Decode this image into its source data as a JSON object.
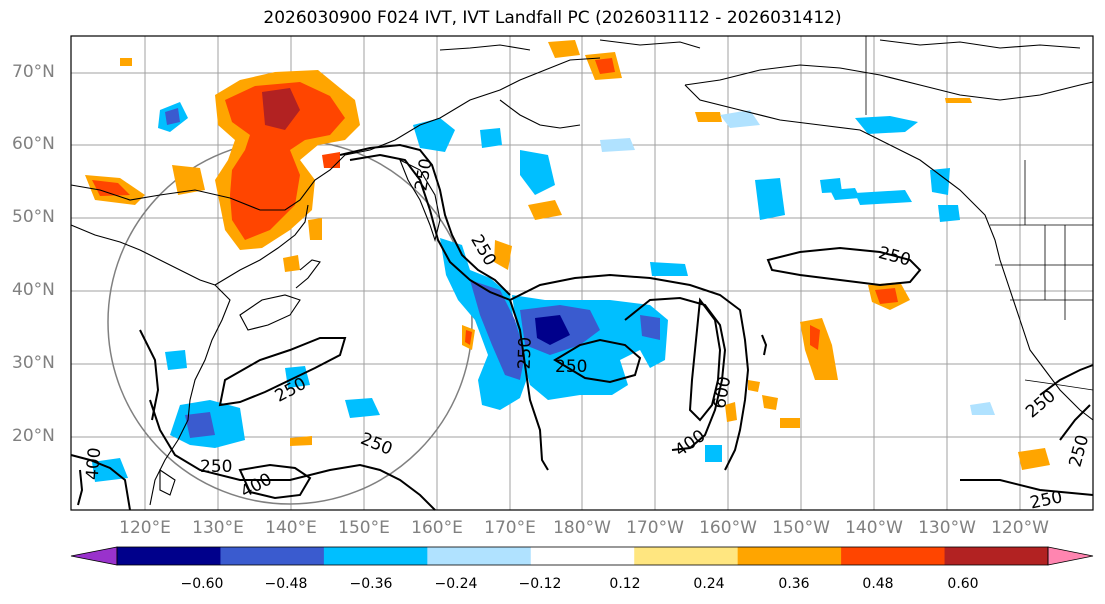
{
  "title": "2026030900 F024 IVT, IVT Landfall PC (2026031112 - 2026031412)",
  "lat_labels": [
    "70°N",
    "60°N",
    "50°N",
    "40°N",
    "30°N",
    "20°N"
  ],
  "lon_labels": [
    "120°E",
    "130°E",
    "140°E",
    "150°E",
    "160°E",
    "170°E",
    "180°W",
    "170°W",
    "160°W",
    "150°W",
    "140°W",
    "130°W",
    "120°W"
  ],
  "contour_labels": [
    "250",
    "250",
    "250",
    "250",
    "250",
    "250",
    "250",
    "250",
    "250",
    "250",
    "250",
    "400",
    "400",
    "400",
    "600"
  ],
  "colorbar": {
    "ticks": [
      "−0.60",
      "−0.48",
      "−0.36",
      "−0.24",
      "−0.12",
      "0.12",
      "0.24",
      "0.36",
      "0.48",
      "0.60"
    ],
    "colors": [
      "#9932cc",
      "#00008b",
      "#3a5bcf",
      "#00bfff",
      "#b0e2ff",
      "#ffffff",
      "#ffe680",
      "#ffa500",
      "#ff4500",
      "#b22222",
      "#ff85b0"
    ]
  },
  "colors": {
    "grid": "#a0a0a0",
    "coast": "#000000",
    "label_gray": "#808080"
  }
}
